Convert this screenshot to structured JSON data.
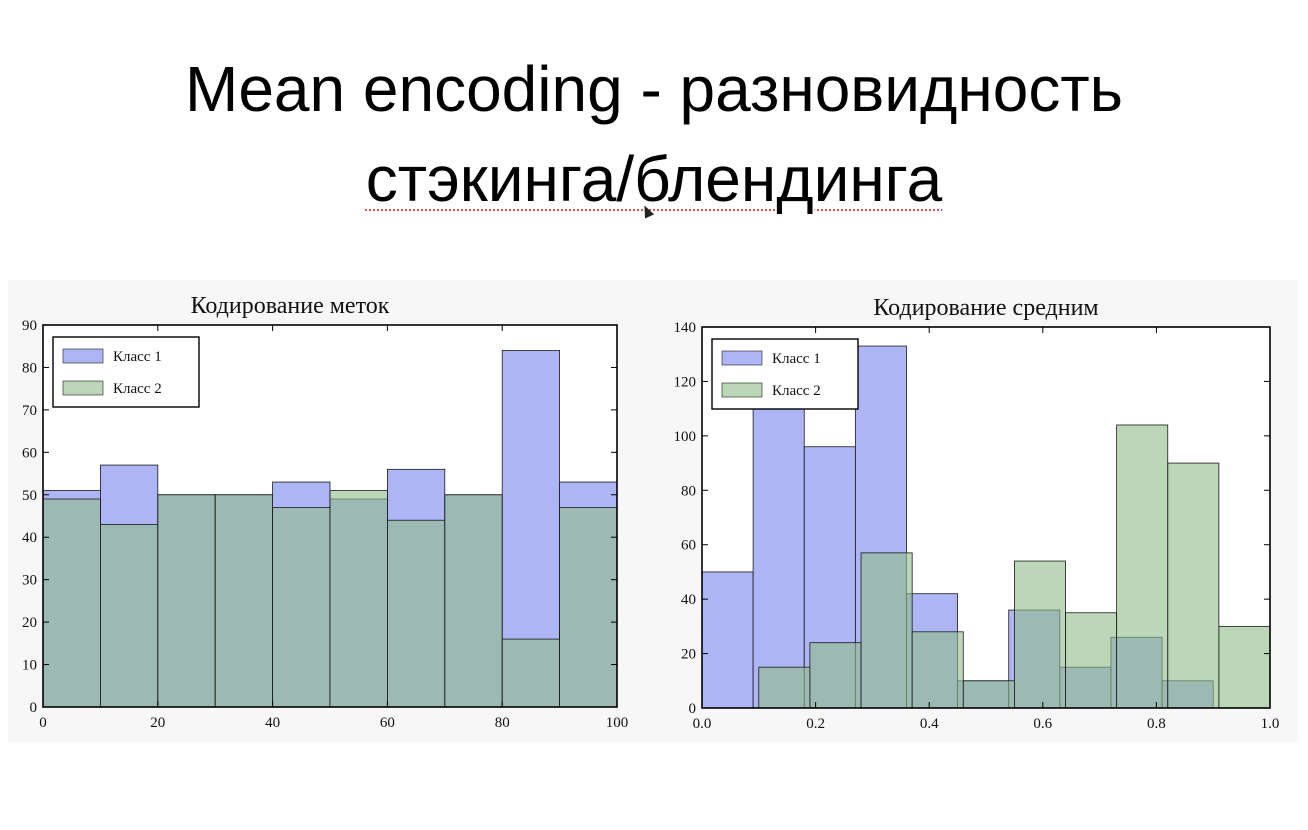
{
  "slide": {
    "title_line1": "Mean encoding - разновидность",
    "title_line2": "стэкинга/блендинга"
  },
  "colors": {
    "class1": "#8c96f0",
    "class2": "#8fbc87",
    "overlap": "#7f9fb0",
    "edge": "#1a1a1a"
  },
  "chart_data": [
    {
      "type": "bar",
      "title": "Кодирование меток",
      "xlabel": "",
      "ylabel": "",
      "xlim": [
        0,
        100
      ],
      "ylim": [
        0,
        90
      ],
      "xticks": [
        0,
        20,
        40,
        60,
        80,
        100
      ],
      "yticks": [
        0,
        10,
        20,
        30,
        40,
        50,
        60,
        70,
        80,
        90
      ],
      "tick_labels_x": [
        "0",
        "20",
        "40",
        "60",
        "80",
        "100"
      ],
      "tick_labels_y": [
        "0",
        "10",
        "20",
        "30",
        "40",
        "50",
        "60",
        "70",
        "80",
        "90"
      ],
      "legend": "top-left",
      "series": [
        {
          "name": "Класс 1",
          "bins": [
            [
              0,
              10
            ],
            [
              10,
              20
            ],
            [
              20,
              30
            ],
            [
              30,
              40
            ],
            [
              40,
              50
            ],
            [
              50,
              60
            ],
            [
              60,
              70
            ],
            [
              70,
              80
            ],
            [
              80,
              90
            ],
            [
              90,
              100
            ]
          ],
          "values": [
            51,
            57,
            50,
            50,
            53,
            49,
            56,
            50,
            84,
            53
          ]
        },
        {
          "name": "Класс 2",
          "bins": [
            [
              0,
              10
            ],
            [
              10,
              20
            ],
            [
              20,
              30
            ],
            [
              30,
              40
            ],
            [
              40,
              50
            ],
            [
              50,
              60
            ],
            [
              60,
              70
            ],
            [
              70,
              80
            ],
            [
              80,
              90
            ],
            [
              90,
              100
            ]
          ],
          "values": [
            49,
            43,
            50,
            50,
            47,
            51,
            44,
            50,
            16,
            47
          ]
        }
      ]
    },
    {
      "type": "bar",
      "title": "Кодирование средним",
      "xlabel": "",
      "ylabel": "",
      "xlim": [
        0.0,
        1.0
      ],
      "ylim": [
        0,
        140
      ],
      "xticks": [
        0.0,
        0.2,
        0.4,
        0.6,
        0.8,
        1.0
      ],
      "yticks": [
        0,
        20,
        40,
        60,
        80,
        100,
        120,
        140
      ],
      "tick_labels_x": [
        "0.0",
        "0.2",
        "0.4",
        "0.6",
        "0.8",
        "1.0"
      ],
      "tick_labels_y": [
        "0",
        "20",
        "40",
        "60",
        "80",
        "100",
        "120",
        "140"
      ],
      "legend": "top-left",
      "series": [
        {
          "name": "Класс 1",
          "bins": [
            [
              0.0,
              0.09
            ],
            [
              0.09,
              0.18
            ],
            [
              0.18,
              0.27
            ],
            [
              0.27,
              0.36
            ],
            [
              0.36,
              0.45
            ],
            [
              0.45,
              0.54
            ],
            [
              0.54,
              0.63
            ],
            [
              0.63,
              0.72
            ],
            [
              0.72,
              0.81
            ],
            [
              0.81,
              0.9
            ]
          ],
          "values": [
            50,
            113,
            96,
            133,
            42,
            10,
            36,
            15,
            26,
            10
          ]
        },
        {
          "name": "Класс 2",
          "bins": [
            [
              0.1,
              0.19
            ],
            [
              0.19,
              0.28
            ],
            [
              0.28,
              0.37
            ],
            [
              0.37,
              0.46
            ],
            [
              0.46,
              0.55
            ],
            [
              0.55,
              0.64
            ],
            [
              0.64,
              0.73
            ],
            [
              0.73,
              0.82
            ],
            [
              0.82,
              0.91
            ],
            [
              0.91,
              1.0
            ]
          ],
          "values": [
            15,
            24,
            57,
            28,
            10,
            54,
            35,
            104,
            90,
            30
          ]
        }
      ]
    }
  ]
}
